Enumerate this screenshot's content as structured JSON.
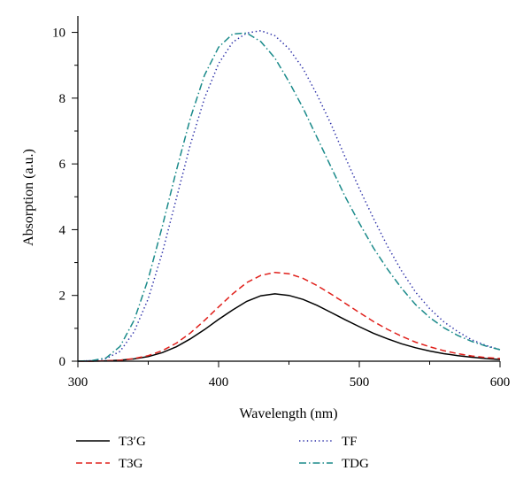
{
  "chart_data": {
    "type": "line",
    "title": "",
    "xlabel": "Wavelength (nm)",
    "ylabel": "Absorption (a.u.)",
    "xlim": [
      300,
      600
    ],
    "ylim": [
      0,
      10.5
    ],
    "x_ticks": [
      300,
      400,
      500,
      600
    ],
    "y_ticks": [
      0,
      2,
      4,
      6,
      8,
      10
    ],
    "grid": false,
    "legend_position": "bottom",
    "x": [
      300,
      310,
      320,
      330,
      340,
      350,
      360,
      370,
      380,
      390,
      400,
      410,
      420,
      430,
      440,
      450,
      460,
      470,
      480,
      490,
      500,
      510,
      520,
      530,
      540,
      550,
      560,
      570,
      580,
      590,
      600
    ],
    "series": [
      {
        "name": "T3′G",
        "color": "#000000",
        "dash": "solid",
        "values": [
          0,
          0,
          0.01,
          0.03,
          0.07,
          0.14,
          0.26,
          0.44,
          0.68,
          0.96,
          1.27,
          1.56,
          1.82,
          1.99,
          2.05,
          2.0,
          1.88,
          1.7,
          1.48,
          1.26,
          1.05,
          0.85,
          0.68,
          0.53,
          0.41,
          0.31,
          0.23,
          0.17,
          0.12,
          0.08,
          0.05
        ]
      },
      {
        "name": "T3G",
        "color": "#e0201b",
        "dash": "dashed",
        "values": [
          0,
          0,
          0.01,
          0.03,
          0.08,
          0.17,
          0.32,
          0.55,
          0.86,
          1.24,
          1.65,
          2.05,
          2.39,
          2.61,
          2.7,
          2.66,
          2.52,
          2.3,
          2.04,
          1.76,
          1.48,
          1.21,
          0.97,
          0.76,
          0.58,
          0.44,
          0.32,
          0.23,
          0.16,
          0.11,
          0.08
        ]
      },
      {
        "name": "TF",
        "color": "#2b2fa8",
        "dash": "dotted",
        "values": [
          0,
          0.02,
          0.08,
          0.3,
          0.9,
          1.9,
          3.3,
          4.95,
          6.6,
          8.0,
          9.05,
          9.7,
          9.98,
          10.05,
          9.9,
          9.5,
          8.9,
          8.1,
          7.2,
          6.2,
          5.25,
          4.35,
          3.5,
          2.75,
          2.1,
          1.6,
          1.2,
          0.9,
          0.65,
          0.48,
          0.35
        ]
      },
      {
        "name": "TDG",
        "color": "#1a8a8a",
        "dash": "dashdot",
        "values": [
          0,
          0.02,
          0.1,
          0.45,
          1.25,
          2.5,
          4.1,
          5.8,
          7.4,
          8.7,
          9.55,
          9.95,
          9.98,
          9.72,
          9.22,
          8.5,
          7.7,
          6.8,
          5.9,
          5.0,
          4.2,
          3.45,
          2.8,
          2.22,
          1.72,
          1.33,
          1.02,
          0.78,
          0.6,
          0.46,
          0.35
        ]
      }
    ]
  }
}
